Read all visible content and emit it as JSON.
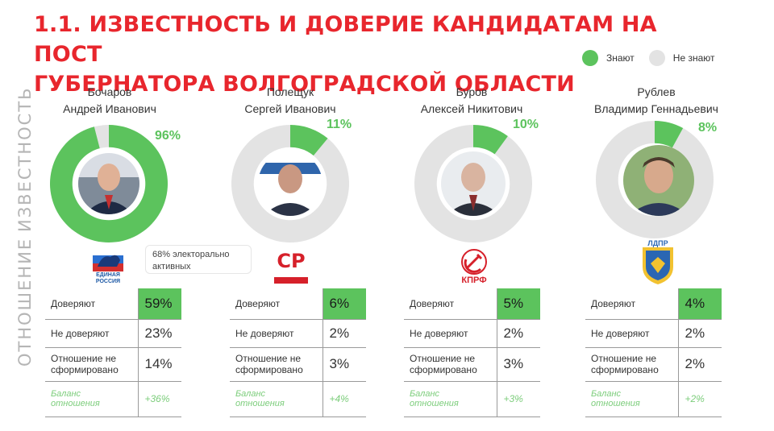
{
  "title_line1": "1.1. ИЗВЕСТНОСТЬ И ДОВЕРИЕ КАНДИДАТАМ НА ПОСТ",
  "title_line2": "ГУБЕРНАТОРА ВОЛГОГРАДСКОЙ ОБЛАСТИ",
  "legend": {
    "know": {
      "label": "Знают",
      "color": "#5cc35d"
    },
    "dont_know": {
      "label": "Не знают",
      "color": "#e3e3e3"
    }
  },
  "side_labels": {
    "awareness": "ИЗВЕСТНОСТЬ",
    "attitude": "ОТНОШЕНИЕ"
  },
  "note": "68% электорально активных",
  "candidates": [
    {
      "last": "Бочаров",
      "first": "Андрей Иванович",
      "awareness_label": "96%",
      "party_label": "ЕДИНАЯ РОССИЯ",
      "party_color": "#1f5aa6",
      "trust_label": "Доверяют",
      "trust": "59%",
      "distrust_label": "Не доверяют",
      "distrust": "23%",
      "undecided_label_1": "Отношение не",
      "undecided_label_2": "сформировано",
      "undecided": "14%",
      "balance_label_1": "Баланс",
      "balance_label_2": "отношения",
      "balance": "+36%"
    },
    {
      "last": "Полещук",
      "first": "Сергей Иванович",
      "awareness_label": "11%",
      "party_label": "СР",
      "party_color": "#d6202a",
      "trust_label": "Доверяют",
      "trust": "6%",
      "distrust_label": "Не доверяют",
      "distrust": "2%",
      "undecided_label_1": "Отношение не",
      "undecided_label_2": "сформировано",
      "undecided": "3%",
      "balance_label_1": "Баланс",
      "balance_label_2": "отношения",
      "balance": "+4%"
    },
    {
      "last": "Буров",
      "first": "Алексей Никитович",
      "awareness_label": "10%",
      "party_label": "КПРФ",
      "party_color": "#d6202a",
      "trust_label": "Доверяют",
      "trust": "5%",
      "distrust_label": "Не доверяют",
      "distrust": "2%",
      "undecided_label_1": "Отношение не",
      "undecided_label_2": "сформировано",
      "undecided": "3%",
      "balance_label_1": "Баланс",
      "balance_label_2": "отношения",
      "balance": "+3%"
    },
    {
      "last": "Рублев",
      "first": "Владимир Геннадьевич",
      "awareness_label": "8%",
      "party_label": "ЛДПР",
      "party_color": "#2a66b3",
      "trust_label": "Доверяют",
      "trust": "4%",
      "distrust_label": "Не доверяют",
      "distrust": "2%",
      "undecided_label_1": "Отношение не",
      "undecided_label_2": "сформировано",
      "undecided": "2%",
      "balance_label_1": "Баланс",
      "balance_label_2": "отношения",
      "balance": "+2%"
    }
  ],
  "chart_data": {
    "type": "pie",
    "categories": [
      "Бочаров Андрей Иванович",
      "Полещук Сергей Иванович",
      "Буров Алексей Никитович",
      "Рублев Владимир Геннадьевич"
    ],
    "series": [
      {
        "name": "Знают",
        "values": [
          96,
          11,
          10,
          8
        ]
      },
      {
        "name": "Не знают",
        "values": [
          4,
          89,
          90,
          92
        ]
      }
    ],
    "title": "1.1. ИЗВЕСТНОСТЬ И ДОВЕРИЕ КАНДИДАТАМ НА ПОСТ ГУБЕРНАТОРА ВОЛГОГРАДСКОЙ ОБЛАСТИ",
    "legend_position": "top-right",
    "grid": false
  }
}
